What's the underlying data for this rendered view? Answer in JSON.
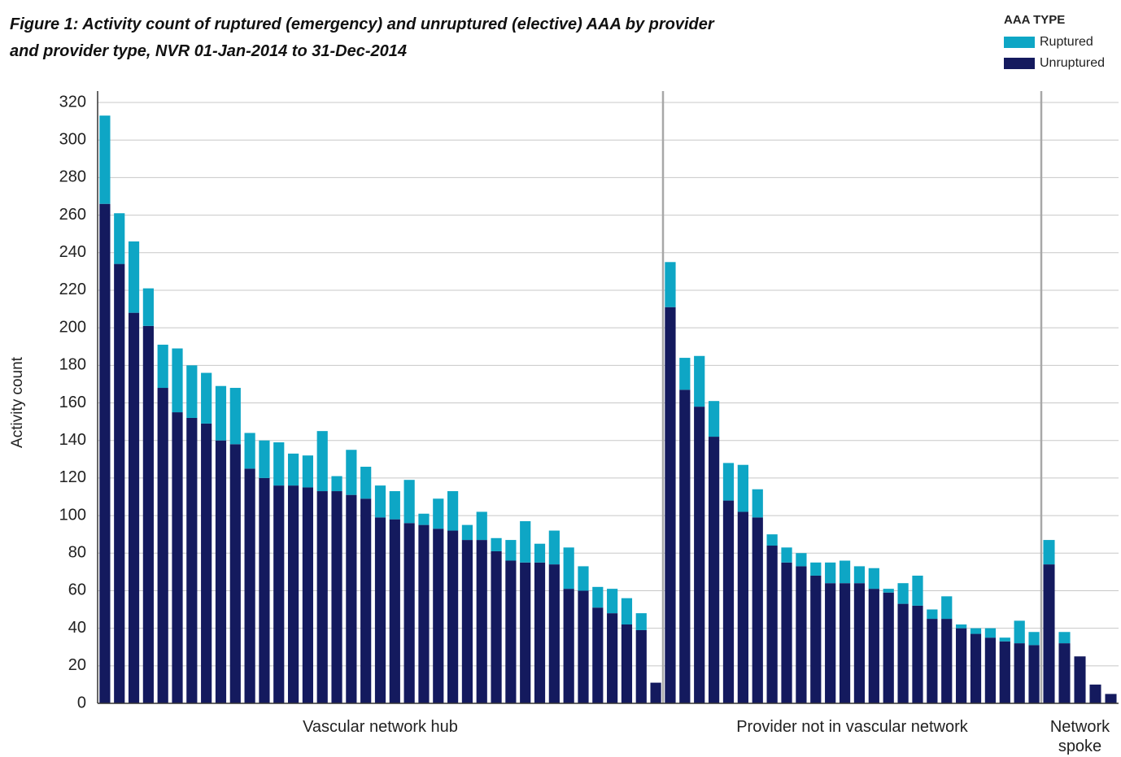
{
  "chart_data": {
    "type": "grouped-stacked-bar",
    "title": "Figure 1: Activity count of ruptured (emergency) and unruptured (elective) AAA by provider and provider type, NVR 01-Jan-2014 to 31-Dec-2014",
    "y_label": "Activity count",
    "legend_title": "AAA TYPE",
    "legend_position": "top-right",
    "grid": true,
    "ylim": [
      0,
      320
    ],
    "yticks": [
      0,
      20,
      40,
      60,
      80,
      100,
      120,
      140,
      160,
      180,
      200,
      220,
      240,
      260,
      280,
      300,
      320
    ],
    "groups": [
      "Vascular network hub",
      "Provider not in vascular network",
      "Network spoke"
    ],
    "series": [
      {
        "name": "Unruptured",
        "color": "#141a5e",
        "values": [
          [
            266,
            234,
            208,
            201,
            168,
            155,
            152,
            149,
            140,
            138,
            125,
            120,
            116,
            116,
            115,
            113,
            113,
            111,
            109,
            99,
            98,
            96,
            95,
            93,
            92,
            87,
            87,
            81,
            76,
            75,
            75,
            74,
            61,
            60,
            51,
            48,
            42,
            39,
            11
          ],
          [
            211,
            167,
            158,
            142,
            108,
            102,
            99,
            84,
            75,
            73,
            68,
            64,
            64,
            64,
            61,
            59,
            53,
            52,
            45,
            45,
            40,
            37,
            35,
            33,
            32,
            31
          ],
          [
            74,
            32,
            25,
            10,
            5
          ]
        ]
      },
      {
        "name": "Ruptured",
        "color": "#0ea6c5",
        "values": [
          [
            47,
            27,
            38,
            20,
            23,
            34,
            28,
            27,
            29,
            30,
            19,
            20,
            23,
            17,
            17,
            32,
            8,
            24,
            17,
            17,
            15,
            23,
            6,
            16,
            21,
            8,
            15,
            7,
            11,
            22,
            10,
            18,
            22,
            13,
            11,
            13,
            14,
            9,
            0
          ],
          [
            24,
            17,
            27,
            19,
            20,
            25,
            15,
            6,
            8,
            7,
            7,
            11,
            12,
            9,
            11,
            2,
            11,
            16,
            5,
            12,
            2,
            3,
            5,
            2,
            12,
            7
          ],
          [
            13,
            6,
            0,
            0,
            0
          ]
        ]
      }
    ]
  }
}
